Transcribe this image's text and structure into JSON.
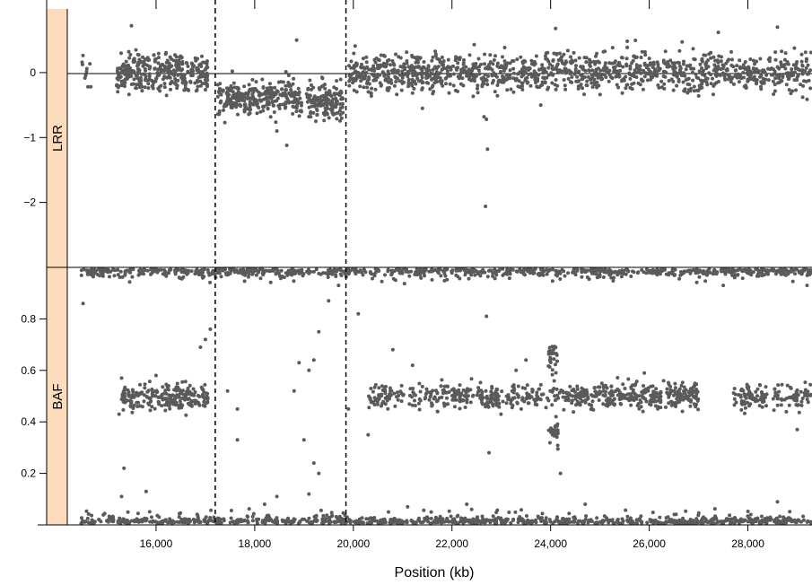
{
  "chart_data": {
    "type": "scatter",
    "xlabel": "Position (kb)",
    "x_unit": "kb",
    "xlim": [
      14200,
      29300
    ],
    "x_ticks": [
      16000,
      18000,
      20000,
      22000,
      24000,
      26000,
      28000
    ],
    "x_tick_labels": [
      "16,000",
      "18,000",
      "20,000",
      "22,000",
      "24,000",
      "26,000",
      "28,000"
    ],
    "vertical_dashed_lines_x": [
      17200,
      19850
    ],
    "point_color": "#5a5a5a",
    "strip_color": "#fcdcbd",
    "panels": [
      {
        "id": "lrr",
        "strip_label": "LRR",
        "ylim": [
          -3.0,
          0.98
        ],
        "y_ticks": [
          0,
          -1,
          -2
        ],
        "y_tick_labels": [
          "0",
          "−1",
          "−2"
        ],
        "reference_line_y": 0,
        "regions": [
          {
            "x": [
              14480,
              14700
            ],
            "center": 0.0,
            "spread": 0.12,
            "n": 10
          },
          {
            "x": [
              15200,
              17050
            ],
            "center": 0.0,
            "spread": 0.15,
            "n": 340
          },
          {
            "x": [
              17250,
              18950
            ],
            "center": -0.38,
            "spread": 0.13,
            "n": 300
          },
          {
            "x": [
              19050,
              19800
            ],
            "center": -0.45,
            "spread": 0.15,
            "n": 140
          },
          {
            "x": [
              19900,
              20700
            ],
            "center": -0.02,
            "spread": 0.15,
            "n": 120
          },
          {
            "x": [
              20700,
              29300
            ],
            "center": 0.0,
            "spread": 0.15,
            "n": 1100
          }
        ],
        "outliers": [
          {
            "x": 22650,
            "y": -0.68
          },
          {
            "x": 22700,
            "y": -0.72
          },
          {
            "x": 22720,
            "y": -1.18
          },
          {
            "x": 22680,
            "y": -2.06
          },
          {
            "x": 18650,
            "y": -1.12
          },
          {
            "x": 18450,
            "y": -0.9
          },
          {
            "x": 18850,
            "y": 0.5
          },
          {
            "x": 15500,
            "y": 0.72
          },
          {
            "x": 24100,
            "y": 0.68
          },
          {
            "x": 27400,
            "y": 0.62
          },
          {
            "x": 28600,
            "y": 0.7
          },
          {
            "x": 21400,
            "y": -0.55
          },
          {
            "x": 23800,
            "y": -0.5
          }
        ]
      },
      {
        "id": "baf",
        "strip_label": "BAF",
        "ylim": [
          0.0,
          1.0
        ],
        "y_ticks": [
          0.2,
          0.4,
          0.6,
          0.8
        ],
        "y_tick_labels": [
          "0.2",
          "0.4",
          "0.6",
          "0.8"
        ],
        "regions": [
          {
            "x": [
              15300,
              17050
            ],
            "center": 0.5,
            "spread": 0.025,
            "n": 230
          },
          {
            "x": [
              20300,
              23600
            ],
            "center": 0.5,
            "spread": 0.025,
            "n": 280
          },
          {
            "x": [
              23600,
              24500
            ],
            "center": 0.5,
            "spread": 0.025,
            "n": 60
          },
          {
            "x": [
              24500,
              27000
            ],
            "center": 0.5,
            "spread": 0.025,
            "n": 320
          },
          {
            "x": [
              27700,
              28400
            ],
            "center": 0.5,
            "spread": 0.025,
            "n": 70
          },
          {
            "x": [
              28500,
              29300
            ],
            "center": 0.5,
            "spread": 0.025,
            "n": 60
          },
          {
            "x": [
              23950,
              24150
            ],
            "center": 0.65,
            "spread": 0.03,
            "n": 28
          },
          {
            "x": [
              23950,
              24150
            ],
            "center": 0.35,
            "spread": 0.03,
            "n": 28
          }
        ],
        "homozygous_bands": [
          {
            "y": 0.0,
            "x": [
              14480,
              29300
            ],
            "n": 900
          },
          {
            "y": 1.0,
            "x": [
              14480,
              29300
            ],
            "n": 900
          }
        ],
        "outliers": [
          {
            "x": 14520,
            "y": 0.86
          },
          {
            "x": 15300,
            "y": 0.57
          },
          {
            "x": 15350,
            "y": 0.22
          },
          {
            "x": 15250,
            "y": 0.43
          },
          {
            "x": 15800,
            "y": 0.13
          },
          {
            "x": 16000,
            "y": 0.58
          },
          {
            "x": 16900,
            "y": 0.69
          },
          {
            "x": 17000,
            "y": 0.72
          },
          {
            "x": 17100,
            "y": 0.76
          },
          {
            "x": 17450,
            "y": 0.52
          },
          {
            "x": 17650,
            "y": 0.33
          },
          {
            "x": 17650,
            "y": 0.45
          },
          {
            "x": 18800,
            "y": 0.52
          },
          {
            "x": 18900,
            "y": 0.63
          },
          {
            "x": 19000,
            "y": 0.33
          },
          {
            "x": 19100,
            "y": 0.6
          },
          {
            "x": 19200,
            "y": 0.64
          },
          {
            "x": 19300,
            "y": 0.75
          },
          {
            "x": 19500,
            "y": 0.87
          },
          {
            "x": 19700,
            "y": 0.93
          },
          {
            "x": 19200,
            "y": 0.24
          },
          {
            "x": 19300,
            "y": 0.2
          },
          {
            "x": 19100,
            "y": 0.12
          },
          {
            "x": 19900,
            "y": 0.45
          },
          {
            "x": 20100,
            "y": 0.82
          },
          {
            "x": 20300,
            "y": 0.35
          },
          {
            "x": 20800,
            "y": 0.68
          },
          {
            "x": 21200,
            "y": 0.62
          },
          {
            "x": 22700,
            "y": 0.81
          },
          {
            "x": 22750,
            "y": 0.28
          },
          {
            "x": 23300,
            "y": 0.6
          },
          {
            "x": 23500,
            "y": 0.64
          },
          {
            "x": 24200,
            "y": 0.2
          },
          {
            "x": 24700,
            "y": 0.08
          },
          {
            "x": 25900,
            "y": 0.59
          },
          {
            "x": 27500,
            "y": 0.93
          },
          {
            "x": 28600,
            "y": 0.09
          },
          {
            "x": 29000,
            "y": 0.37
          },
          {
            "x": 29200,
            "y": 0.93
          },
          {
            "x": 15300,
            "y": 0.11
          },
          {
            "x": 21100,
            "y": 0.07
          },
          {
            "x": 22300,
            "y": 0.08
          },
          {
            "x": 22400,
            "y": 0.06
          },
          {
            "x": 18200,
            "y": 0.08
          },
          {
            "x": 18450,
            "y": 0.11
          }
        ]
      }
    ]
  }
}
